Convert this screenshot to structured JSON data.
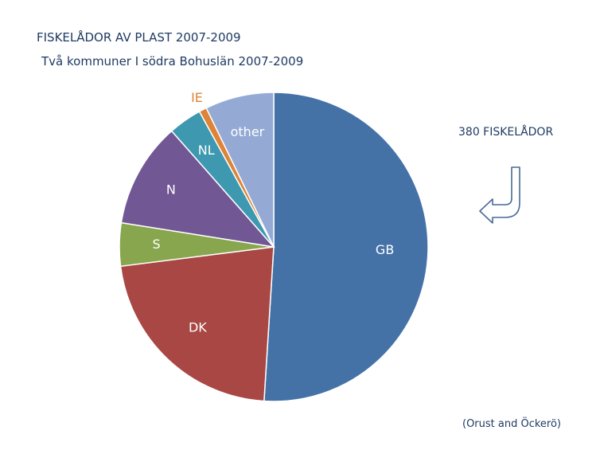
{
  "header": {
    "title": "FISKELÅDOR AV PLAST 2007-2009",
    "subtitle": "Två kommuner I södra Bohuslän 2007-2009"
  },
  "annotations": {
    "count": "380 FISKELÅDOR",
    "source": "(Orust and Öckerö)"
  },
  "chart_data": {
    "type": "pie",
    "title": "FISKELÅDOR AV PLAST 2007-2009",
    "subtitle": "Två kommuner I södra Bohuslän 2007-2009",
    "unit": "%",
    "slices": [
      {
        "label": "GB",
        "value": 51.0,
        "color": "#4472a6"
      },
      {
        "label": "DK",
        "value": 22.0,
        "color": "#a84744"
      },
      {
        "label": "S",
        "value": 4.5,
        "color": "#88a64d"
      },
      {
        "label": "N",
        "value": 11.0,
        "color": "#715794"
      },
      {
        "label": "NL",
        "value": 3.5,
        "color": "#3d98b0"
      },
      {
        "label": "IE",
        "value": 0.8,
        "color": "#dd8438"
      },
      {
        "label": "other",
        "value": 7.2,
        "color": "#94aad5"
      }
    ],
    "start_angle_deg": 0,
    "direction": "clockwise",
    "label_colors": {
      "inside": "#ffffff",
      "IE": "#dd8438"
    },
    "arrow_color": "#4a6a96"
  }
}
